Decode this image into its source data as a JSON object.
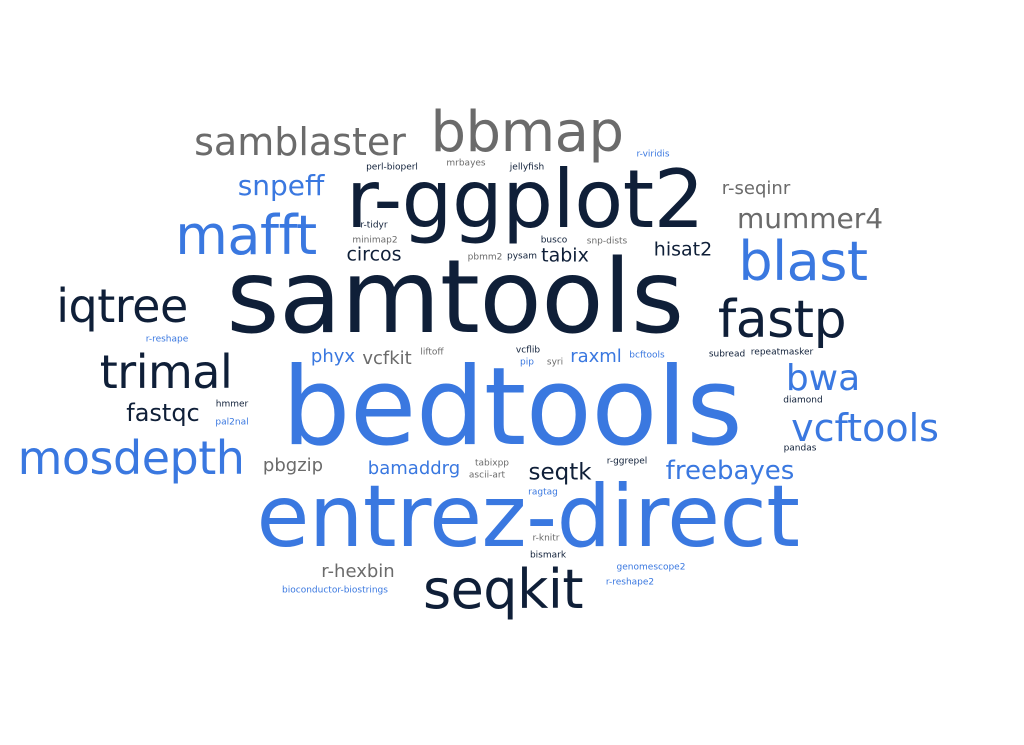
{
  "colors": {
    "dark": "#0f1f38",
    "blue": "#3a78e0",
    "gray": "#6b6b6b"
  },
  "words": [
    {
      "text": "bedtools",
      "color": "blue",
      "weight": 100
    },
    {
      "text": "samtools",
      "color": "dark",
      "weight": 96
    },
    {
      "text": "entrez-direct",
      "color": "blue",
      "weight": 88
    },
    {
      "text": "r-ggplot2",
      "color": "dark",
      "weight": 78
    },
    {
      "text": "bbmap",
      "color": "gray",
      "weight": 56
    },
    {
      "text": "seqkit",
      "color": "dark",
      "weight": 54
    },
    {
      "text": "mafft",
      "color": "blue",
      "weight": 54
    },
    {
      "text": "blast",
      "color": "blue",
      "weight": 52
    },
    {
      "text": "fastp",
      "color": "dark",
      "weight": 50
    },
    {
      "text": "trimal",
      "color": "dark",
      "weight": 44
    },
    {
      "text": "mosdepth",
      "color": "blue",
      "weight": 44
    },
    {
      "text": "iqtree",
      "color": "dark",
      "weight": 44
    },
    {
      "text": "samblaster",
      "color": "gray",
      "weight": 38
    },
    {
      "text": "vcftools",
      "color": "blue",
      "weight": 37
    },
    {
      "text": "bwa",
      "color": "blue",
      "weight": 36
    },
    {
      "text": "snpeff",
      "color": "blue",
      "weight": 28
    },
    {
      "text": "mummer4",
      "color": "gray",
      "weight": 28
    },
    {
      "text": "freebayes",
      "color": "blue",
      "weight": 28
    },
    {
      "text": "fastqc",
      "color": "dark",
      "weight": 26
    },
    {
      "text": "seqtk",
      "color": "dark",
      "weight": 24
    },
    {
      "text": "hisat2",
      "color": "dark",
      "weight": 20
    },
    {
      "text": "circos",
      "color": "dark",
      "weight": 20
    },
    {
      "text": "tabix",
      "color": "dark",
      "weight": 20
    },
    {
      "text": "r-seqinr",
      "color": "gray",
      "weight": 19
    },
    {
      "text": "phyx",
      "color": "blue",
      "weight": 19
    },
    {
      "text": "vcfkit",
      "color": "gray",
      "weight": 19
    },
    {
      "text": "raxml",
      "color": "blue",
      "weight": 19
    },
    {
      "text": "bamaddrg",
      "color": "blue",
      "weight": 19
    },
    {
      "text": "pbgzip",
      "color": "gray",
      "weight": 19
    },
    {
      "text": "r-hexbin",
      "color": "gray",
      "weight": 19
    },
    {
      "text": "perl-bioperl",
      "color": "dark",
      "weight": 9
    },
    {
      "text": "mrbayes",
      "color": "gray",
      "weight": 8
    },
    {
      "text": "jellyfish",
      "color": "dark",
      "weight": 8
    },
    {
      "text": "r-viridis",
      "color": "blue",
      "weight": 8
    },
    {
      "text": "r-tidyr",
      "color": "dark",
      "weight": 8
    },
    {
      "text": "minimap2",
      "color": "gray",
      "weight": 8
    },
    {
      "text": "busco",
      "color": "dark",
      "weight": 8
    },
    {
      "text": "snp-dists",
      "color": "gray",
      "weight": 8
    },
    {
      "text": "pbmm2",
      "color": "gray",
      "weight": 8
    },
    {
      "text": "pysam",
      "color": "dark",
      "weight": 8
    },
    {
      "text": "r-reshape",
      "color": "blue",
      "weight": 8
    },
    {
      "text": "liftoff",
      "color": "gray",
      "weight": 8
    },
    {
      "text": "vcflib",
      "color": "dark",
      "weight": 8
    },
    {
      "text": "pip",
      "color": "blue",
      "weight": 8
    },
    {
      "text": "syri",
      "color": "gray",
      "weight": 8
    },
    {
      "text": "bcftools",
      "color": "blue",
      "weight": 8
    },
    {
      "text": "subread",
      "color": "dark",
      "weight": 8
    },
    {
      "text": "repeatmasker",
      "color": "dark",
      "weight": 8
    },
    {
      "text": "hmmer",
      "color": "dark",
      "weight": 8
    },
    {
      "text": "pal2nal",
      "color": "blue",
      "weight": 8
    },
    {
      "text": "diamond",
      "color": "dark",
      "weight": 8
    },
    {
      "text": "pandas",
      "color": "dark",
      "weight": 8
    },
    {
      "text": "tabixpp",
      "color": "gray",
      "weight": 8
    },
    {
      "text": "ascii-art",
      "color": "gray",
      "weight": 8
    },
    {
      "text": "r-ggrepel",
      "color": "dark",
      "weight": 8
    },
    {
      "text": "ragtag",
      "color": "blue",
      "weight": 8
    },
    {
      "text": "r-knitr",
      "color": "gray",
      "weight": 8
    },
    {
      "text": "bismark",
      "color": "dark",
      "weight": 8
    },
    {
      "text": "genomescope2",
      "color": "blue",
      "weight": 8
    },
    {
      "text": "bioconductor-biostrings",
      "color": "blue",
      "weight": 8
    },
    {
      "text": "r-reshape2",
      "color": "blue",
      "weight": 8
    }
  ]
}
